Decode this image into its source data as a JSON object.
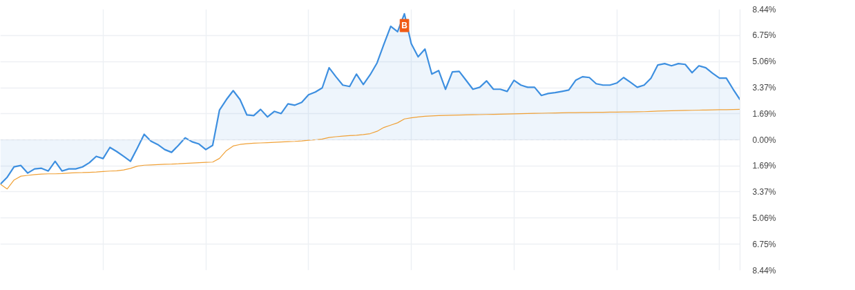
{
  "chart_data": {
    "type": "area",
    "categories": [
      null,
      null,
      null,
      null,
      null,
      null,
      null,
      null,
      null,
      null,
      null,
      null,
      null,
      null,
      null,
      null,
      null,
      null,
      null,
      null,
      null,
      null,
      null,
      null,
      null,
      null,
      null,
      null,
      null,
      null,
      null,
      null,
      null,
      null,
      null,
      null,
      null,
      null,
      null,
      null,
      null,
      null,
      null,
      null,
      null,
      null,
      null,
      null,
      null,
      null,
      null,
      null,
      null,
      null,
      null,
      null,
      null,
      null,
      null,
      null,
      null,
      null,
      null,
      null,
      null,
      null,
      null,
      null,
      null,
      null,
      null,
      null,
      null,
      null,
      null,
      null,
      null,
      null,
      null,
      null,
      null,
      null,
      null,
      null,
      null,
      null,
      null,
      null,
      null,
      null,
      null,
      null,
      null,
      null,
      null,
      null,
      null,
      null,
      null,
      null,
      null,
      null,
      null,
      null,
      null,
      null,
      null,
      null,
      null
    ],
    "series": [
      {
        "color": "#3d8fe0",
        "values": [
          -2.87,
          -2.42,
          -1.75,
          -1.66,
          -2.15,
          -1.88,
          -1.84,
          -2.02,
          -1.39,
          -2.02,
          -1.88,
          -1.88,
          -1.75,
          -1.48,
          -1.07,
          -1.21,
          -0.49,
          -0.76,
          -1.07,
          -1.39,
          -0.54,
          0.36,
          -0.09,
          -0.31,
          -0.63,
          -0.81,
          -0.36,
          0.13,
          -0.13,
          -0.27,
          -0.63,
          -0.36,
          1.93,
          2.6,
          3.18,
          2.6,
          1.61,
          1.57,
          1.97,
          1.48,
          1.84,
          1.7,
          2.33,
          2.24,
          2.42,
          2.91,
          3.09,
          3.36,
          4.66,
          4.08,
          3.54,
          3.45,
          4.25,
          3.58,
          4.21,
          4.97,
          6.18,
          7.34,
          6.99,
          8.15,
          6.22,
          5.37,
          5.87,
          4.25,
          4.48,
          3.27,
          4.39,
          4.43,
          3.85,
          3.27,
          3.4,
          3.81,
          3.27,
          3.27,
          3.13,
          3.85,
          3.54,
          3.4,
          3.4,
          2.87,
          3.0,
          3.05,
          3.13,
          3.22,
          3.85,
          4.08,
          4.03,
          3.63,
          3.54,
          3.54,
          3.67,
          4.03,
          3.72,
          3.4,
          3.54,
          3.99,
          4.84,
          4.93,
          4.79,
          4.93,
          4.88,
          4.34,
          4.79,
          4.66,
          4.3,
          3.99,
          3.99,
          3.27,
          2.6
        ]
      },
      {
        "type": "line",
        "color": "#f0a035",
        "values": [
          -2.87,
          -3.18,
          -2.6,
          -2.35,
          -2.3,
          -2.25,
          -2.22,
          -2.2,
          -2.2,
          -2.18,
          -2.15,
          -2.13,
          -2.12,
          -2.1,
          -2.08,
          -2.05,
          -2.02,
          -2.0,
          -1.95,
          -1.85,
          -1.7,
          -1.64,
          -1.62,
          -1.6,
          -1.58,
          -1.57,
          -1.55,
          -1.52,
          -1.5,
          -1.48,
          -1.46,
          -1.44,
          -1.2,
          -0.7,
          -0.4,
          -0.3,
          -0.25,
          -0.22,
          -0.2,
          -0.18,
          -0.16,
          -0.14,
          -0.12,
          -0.1,
          -0.07,
          -0.03,
          0.0,
          0.05,
          0.15,
          0.2,
          0.24,
          0.27,
          0.3,
          0.34,
          0.4,
          0.55,
          0.8,
          0.95,
          1.1,
          1.35,
          1.42,
          1.48,
          1.52,
          1.55,
          1.57,
          1.58,
          1.59,
          1.6,
          1.61,
          1.62,
          1.63,
          1.64,
          1.65,
          1.66,
          1.67,
          1.68,
          1.69,
          1.7,
          1.71,
          1.72,
          1.73,
          1.74,
          1.75,
          1.76,
          1.76,
          1.77,
          1.77,
          1.78,
          1.78,
          1.79,
          1.79,
          1.8,
          1.8,
          1.81,
          1.82,
          1.84,
          1.86,
          1.87,
          1.88,
          1.89,
          1.9,
          1.91,
          1.92,
          1.93,
          1.94,
          1.95,
          1.95,
          1.96,
          1.97
        ]
      }
    ],
    "ylim": [
      -8.44,
      8.44
    ],
    "yticks": [
      {
        "value": 8.44,
        "label": "8.44%"
      },
      {
        "value": 6.75,
        "label": "6.75%"
      },
      {
        "value": 5.06,
        "label": "5.06%"
      },
      {
        "value": 3.37,
        "label": "3.37%"
      },
      {
        "value": 1.69,
        "label": "1.69%"
      },
      {
        "value": 0,
        "label": "0.00%"
      },
      {
        "value": -1.69,
        "label": "1.69%"
      },
      {
        "value": -3.37,
        "label": "3.37%"
      },
      {
        "value": -5.06,
        "label": "5.06%"
      },
      {
        "value": -6.75,
        "label": "6.75%"
      },
      {
        "value": -8.44,
        "label": "8.44%"
      }
    ],
    "ref_lines": [
      {
        "axis": "y",
        "value": 0,
        "line_style": "dashed",
        "color": "#dde3ea"
      }
    ],
    "annotations": [
      "B"
    ],
    "grid": true,
    "tick_labels": "y"
  }
}
